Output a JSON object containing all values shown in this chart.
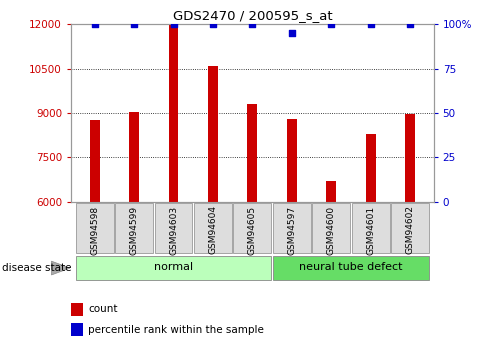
{
  "title": "GDS2470 / 200595_s_at",
  "samples": [
    "GSM94598",
    "GSM94599",
    "GSM94603",
    "GSM94604",
    "GSM94605",
    "GSM94597",
    "GSM94600",
    "GSM94601",
    "GSM94602"
  ],
  "counts": [
    8750,
    9050,
    12000,
    10600,
    9300,
    8800,
    6700,
    8300,
    8950
  ],
  "percentiles": [
    100,
    100,
    100,
    100,
    100,
    95,
    100,
    100,
    100
  ],
  "disease_states": [
    "normal",
    "normal",
    "normal",
    "normal",
    "normal",
    "neural tube defect",
    "neural tube defect",
    "neural tube defect",
    "neural tube defect"
  ],
  "bar_color": "#cc0000",
  "dot_color": "#0000cc",
  "ylim_left": [
    6000,
    12000
  ],
  "ylim_right": [
    0,
    100
  ],
  "yticks_left": [
    6000,
    7500,
    9000,
    10500,
    12000
  ],
  "yticks_right": [
    0,
    25,
    50,
    75,
    100
  ],
  "ytick_labels_right": [
    "0",
    "25",
    "50",
    "75",
    "100%"
  ],
  "normal_color": "#bbffbb",
  "defect_color": "#66dd66",
  "normal_label": "normal",
  "defect_label": "neural tube defect",
  "legend_count": "count",
  "legend_percentile": "percentile rank within the sample",
  "disease_state_label": "disease state",
  "label_bg": "#dddddd",
  "ybase": 6000
}
